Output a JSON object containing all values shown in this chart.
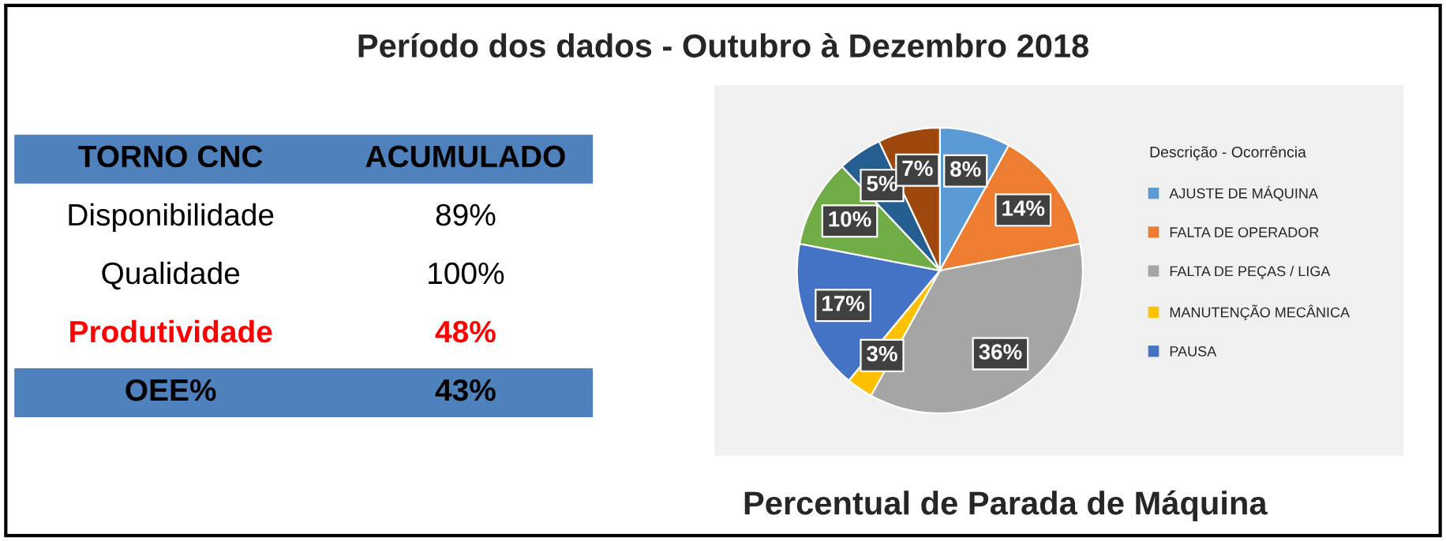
{
  "chart_data": [
    {
      "type": "other",
      "title": "Período dos dados - Outubro à Dezembro 2018",
      "annotations": [
        "TORNO CNC",
        "ACUMULADO",
        "Disponibilidade",
        "89%",
        "Qualidade",
        "100%",
        "Produtividade",
        "48%",
        "OEE%",
        "43%"
      ]
    },
    {
      "type": "pie",
      "title": "Percentual de Parada de Máquina",
      "legend_title": "Descrição - Ocorrência",
      "legend": "right",
      "value_labels": [
        "8%",
        "14%",
        "36%",
        "3%",
        "17%",
        "10%",
        "5%",
        "7%"
      ],
      "categories": [
        "AJUSTE DE MÁQUINA",
        "FALTA DE OPERADOR",
        "FALTA DE PEÇAS / LIGA",
        "MANUTENÇÃO MECÂNICA",
        "PAUSA",
        null,
        null,
        null
      ],
      "values": [
        8,
        14,
        36,
        3,
        17,
        10,
        5,
        7
      ],
      "colors": [
        "#5b9bd5",
        "#ed7d31",
        "#a5a5a5",
        "#ffc000",
        "#4472c4",
        "#70ad47",
        "#255e91",
        "#9e480e"
      ]
    }
  ]
}
